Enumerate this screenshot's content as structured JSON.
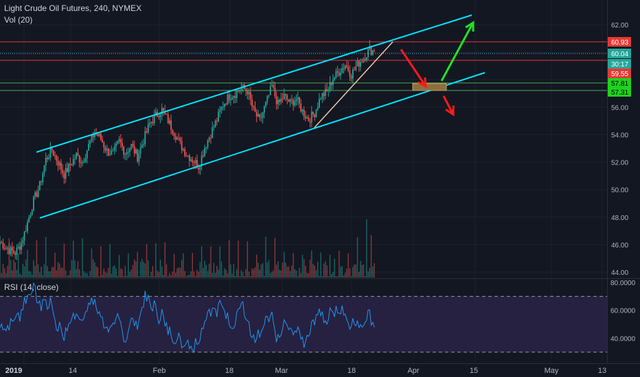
{
  "title": "Light Crude Oil Futures, 240, NYMEX",
  "volume_label": "Vol (20)",
  "rsi_label": "RSI (14, close)",
  "colors": {
    "background": "#131722",
    "grid": "#1e222d",
    "axis_text": "#b2b5be",
    "up_candle": "#26a69a",
    "down_candle": "#ef5350",
    "channel": "#00e5ff",
    "trend_line": "#f5c6a5",
    "resistance": "#e53935",
    "support": "#4caf50",
    "dotted_last": "#4dd0e1",
    "rsi_line": "#2196f3",
    "rsi_fill": "#2a2346"
  },
  "chart_data": {
    "type": "candlestick",
    "symbol": "Light Crude Oil Futures",
    "interval": "240",
    "exchange": "NYMEX",
    "price_axis": {
      "ylim": [
        43.6,
        63.8
      ],
      "ticks": [
        "62.00",
        "56.00",
        "54.00",
        "52.00",
        "50.00",
        "48.00",
        "46.00",
        "44.00"
      ]
    },
    "time_axis": {
      "labels": [
        "2019",
        "14",
        "Feb",
        "18",
        "Mar",
        "18",
        "Apr",
        "15",
        "May",
        "13"
      ]
    },
    "price_tags": [
      {
        "label": "60.93",
        "kind": "resistance"
      },
      {
        "label": "60.04",
        "kind": "last"
      },
      {
        "label": "30:17",
        "kind": "countdown"
      },
      {
        "label": "59.55",
        "kind": "resistance"
      },
      {
        "label": "57.81",
        "kind": "support"
      },
      {
        "label": "57.31",
        "kind": "support"
      }
    ],
    "close_anchors": [
      [
        0,
        46.2
      ],
      [
        6,
        45.6
      ],
      [
        10,
        45.4
      ],
      [
        14,
        46.1
      ],
      [
        18,
        47.6
      ],
      [
        22,
        49.2
      ],
      [
        26,
        50.3
      ],
      [
        30,
        52.2
      ],
      [
        34,
        52.9
      ],
      [
        38,
        52.0
      ],
      [
        42,
        51.1
      ],
      [
        46,
        51.8
      ],
      [
        50,
        52.5
      ],
      [
        54,
        52.0
      ],
      [
        58,
        53.2
      ],
      [
        62,
        54.2
      ],
      [
        66,
        53.7
      ],
      [
        70,
        52.8
      ],
      [
        74,
        52.6
      ],
      [
        78,
        53.5
      ],
      [
        82,
        52.7
      ],
      [
        86,
        53.2
      ],
      [
        90,
        52.4
      ],
      [
        94,
        53.6
      ],
      [
        98,
        54.8
      ],
      [
        102,
        55.4
      ],
      [
        106,
        55.8
      ],
      [
        110,
        55.0
      ],
      [
        114,
        54.2
      ],
      [
        118,
        53.3
      ],
      [
        122,
        52.6
      ],
      [
        126,
        52.2
      ],
      [
        130,
        51.7
      ],
      [
        134,
        53.1
      ],
      [
        138,
        54.1
      ],
      [
        142,
        55.1
      ],
      [
        146,
        56.2
      ],
      [
        150,
        56.8
      ],
      [
        154,
        57.0
      ],
      [
        158,
        57.4
      ],
      [
        162,
        57.2
      ],
      [
        166,
        55.7
      ],
      [
        170,
        55.0
      ],
      [
        174,
        56.2
      ],
      [
        178,
        57.5
      ],
      [
        182,
        56.2
      ],
      [
        186,
        56.8
      ],
      [
        190,
        56.3
      ],
      [
        194,
        56.6
      ],
      [
        198,
        55.7
      ],
      [
        202,
        55.1
      ],
      [
        206,
        55.6
      ],
      [
        210,
        56.8
      ],
      [
        214,
        57.1
      ],
      [
        218,
        58.1
      ],
      [
        222,
        58.6
      ],
      [
        226,
        59.1
      ],
      [
        230,
        58.4
      ],
      [
        234,
        59.1
      ],
      [
        238,
        59.6
      ],
      [
        242,
        60.2
      ],
      [
        245,
        60.04
      ]
    ],
    "rsi": {
      "ylim": [
        22,
        82
      ],
      "ticks": [
        "80.0000",
        "60.0000",
        "40.0000"
      ],
      "upper_band": 70,
      "lower_band": 30
    },
    "annotations": [
      {
        "type": "ascending-channel",
        "description": "cyan parallel channel lines"
      },
      {
        "type": "trend-line",
        "description": "rising support from early-March low"
      },
      {
        "type": "target-box",
        "description": "box near the channel support"
      },
      {
        "type": "arrows",
        "description": "red arrows down to box and below, green arrow up to channel top"
      }
    ]
  }
}
